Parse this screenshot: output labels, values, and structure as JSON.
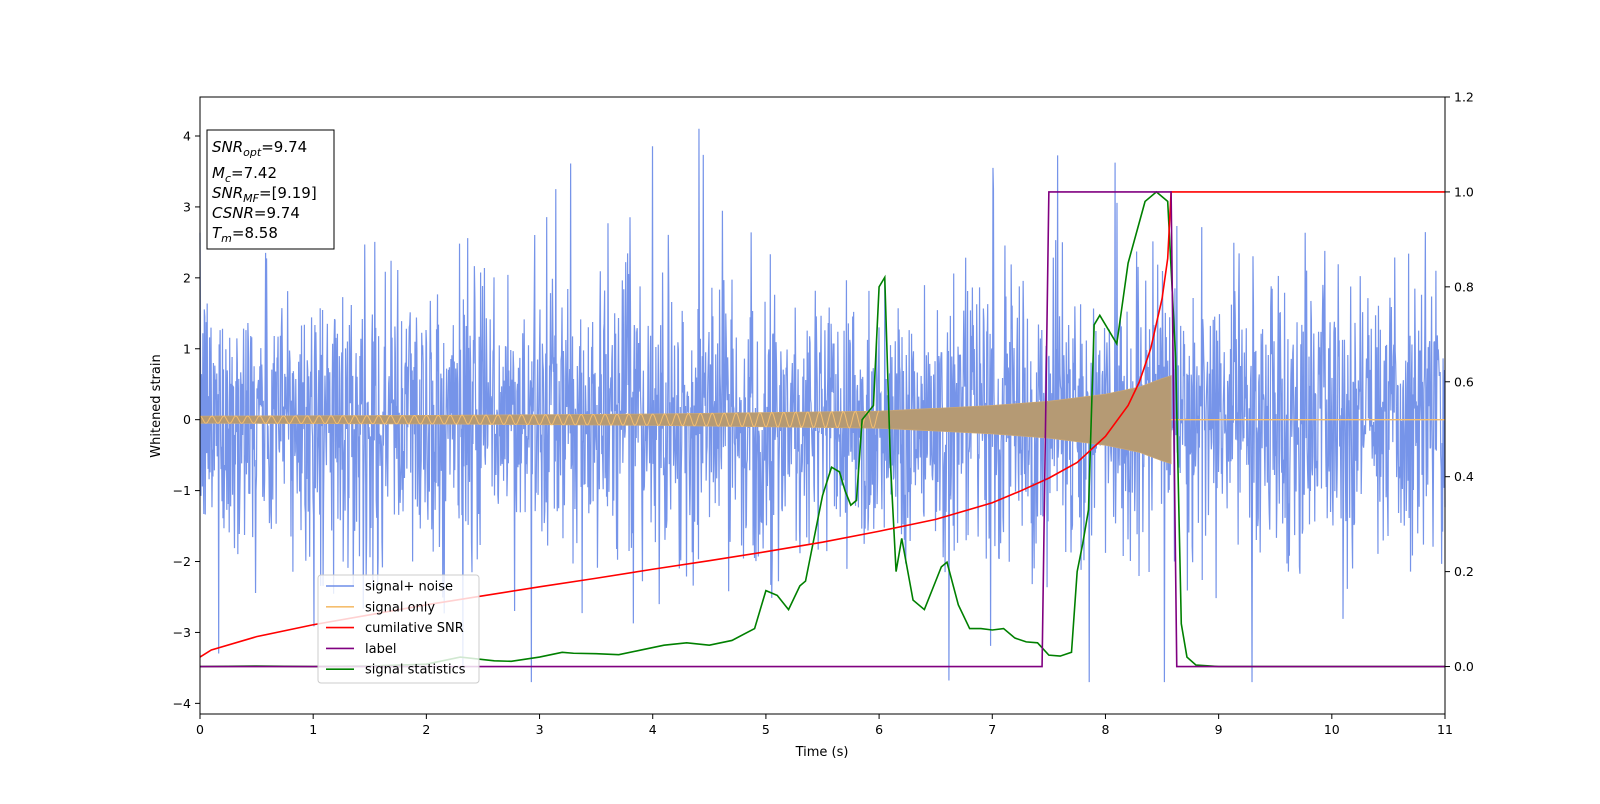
{
  "chart_data": {
    "type": "line",
    "xlabel": "Time (s)",
    "ylabel": "Whitened strain",
    "xlim": [
      0,
      11
    ],
    "ylim_left": [
      -4.15,
      4.55
    ],
    "ylim_right": [
      -0.1,
      1.2
    ],
    "x_ticks": [
      0,
      1,
      2,
      3,
      4,
      5,
      6,
      7,
      8,
      9,
      10,
      11
    ],
    "y_ticks_left": [
      -4,
      -3,
      -2,
      -1,
      0,
      1,
      2,
      3,
      4
    ],
    "y_ticks_right": [
      0.0,
      0.2,
      0.4,
      0.6,
      0.8,
      1.0,
      1.2
    ],
    "info_box": {
      "lines": [
        {
          "sym": "SNR",
          "sub": "opt",
          "val": "=9.74"
        },
        {
          "sym": "M",
          "sub": "c",
          "val": "=7.42"
        },
        {
          "sym": "SNR",
          "sub": "MF",
          "val": "=[9.19]"
        },
        {
          "sym": "CSNR",
          "sub": "",
          "val": "=9.74"
        },
        {
          "sym": "T",
          "sub": "m",
          "val": "=8.58"
        }
      ]
    },
    "legend": [
      {
        "label": "signal+ noise",
        "color": "#6f8ee8"
      },
      {
        "label": "signal only",
        "color": "#f5be6e"
      },
      {
        "label": "cumilative SNR",
        "color": "#ff0000"
      },
      {
        "label": "label",
        "color": "#800080"
      },
      {
        "label": "signal statistics",
        "color": "#008000"
      }
    ],
    "series": [
      {
        "name": "signal+ noise",
        "axis": "left",
        "color": "#6f8ee8",
        "description": "dense whitened noise, roughly +/-2 with spikes to ~4.2",
        "x_range": [
          0,
          11
        ],
        "amplitude_range": [
          -3.7,
          4.2
        ]
      },
      {
        "name": "signal only",
        "axis": "left",
        "color": "#f5be6e",
        "description": "chirp, envelope growing from ~0.05 at t=0 to ~0.6 at t=8.58, zero after",
        "envelope": [
          [
            0,
            0.05
          ],
          [
            2,
            0.06
          ],
          [
            4,
            0.08
          ],
          [
            6,
            0.12
          ],
          [
            7,
            0.2
          ],
          [
            7.5,
            0.26
          ],
          [
            8,
            0.36
          ],
          [
            8.3,
            0.46
          ],
          [
            8.5,
            0.58
          ],
          [
            8.58,
            0.62
          ]
        ]
      },
      {
        "name": "cumilative SNR",
        "axis": "right",
        "color": "#ff0000",
        "points": [
          [
            0,
            0.02
          ],
          [
            0.1,
            0.035
          ],
          [
            0.5,
            0.063
          ],
          [
            1,
            0.088
          ],
          [
            1.5,
            0.109
          ],
          [
            2,
            0.13
          ],
          [
            2.5,
            0.149
          ],
          [
            3,
            0.168
          ],
          [
            3.5,
            0.186
          ],
          [
            4,
            0.205
          ],
          [
            4.5,
            0.223
          ],
          [
            5,
            0.242
          ],
          [
            5.5,
            0.262
          ],
          [
            6,
            0.285
          ],
          [
            6.5,
            0.31
          ],
          [
            7,
            0.345
          ],
          [
            7.25,
            0.37
          ],
          [
            7.5,
            0.397
          ],
          [
            7.75,
            0.43
          ],
          [
            8,
            0.485
          ],
          [
            8.2,
            0.55
          ],
          [
            8.3,
            0.6
          ],
          [
            8.4,
            0.67
          ],
          [
            8.5,
            0.775
          ],
          [
            8.55,
            0.86
          ],
          [
            8.58,
            1.0
          ],
          [
            11,
            1.0
          ]
        ]
      },
      {
        "name": "label",
        "axis": "right",
        "color": "#800080",
        "points": [
          [
            0,
            0.0
          ],
          [
            7.44,
            0.0
          ],
          [
            7.5,
            1.0
          ],
          [
            8.58,
            1.0
          ],
          [
            8.63,
            0.0
          ],
          [
            11,
            0.0
          ]
        ]
      },
      {
        "name": "signal statistics",
        "axis": "right",
        "color": "#008000",
        "points": [
          [
            0,
            0.0
          ],
          [
            0.5,
            0.001
          ],
          [
            1,
            0.0
          ],
          [
            1.5,
            0.001
          ],
          [
            2,
            0.005
          ],
          [
            2.3,
            0.02
          ],
          [
            2.6,
            0.012
          ],
          [
            2.75,
            0.011
          ],
          [
            3,
            0.02
          ],
          [
            3.1,
            0.025
          ],
          [
            3.2,
            0.03
          ],
          [
            3.3,
            0.028
          ],
          [
            3.5,
            0.027
          ],
          [
            3.7,
            0.025
          ],
          [
            3.9,
            0.035
          ],
          [
            4.1,
            0.045
          ],
          [
            4.3,
            0.05
          ],
          [
            4.5,
            0.045
          ],
          [
            4.7,
            0.055
          ],
          [
            4.9,
            0.08
          ],
          [
            5.0,
            0.16
          ],
          [
            5.1,
            0.15
          ],
          [
            5.2,
            0.12
          ],
          [
            5.3,
            0.17
          ],
          [
            5.35,
            0.18
          ],
          [
            5.45,
            0.3
          ],
          [
            5.5,
            0.36
          ],
          [
            5.58,
            0.42
          ],
          [
            5.65,
            0.41
          ],
          [
            5.7,
            0.37
          ],
          [
            5.75,
            0.34
          ],
          [
            5.8,
            0.35
          ],
          [
            5.85,
            0.52
          ],
          [
            5.95,
            0.55
          ],
          [
            6.0,
            0.8
          ],
          [
            6.05,
            0.82
          ],
          [
            6.1,
            0.43
          ],
          [
            6.15,
            0.2
          ],
          [
            6.2,
            0.27
          ],
          [
            6.3,
            0.14
          ],
          [
            6.4,
            0.12
          ],
          [
            6.5,
            0.18
          ],
          [
            6.55,
            0.21
          ],
          [
            6.6,
            0.22
          ],
          [
            6.7,
            0.13
          ],
          [
            6.8,
            0.08
          ],
          [
            6.9,
            0.08
          ],
          [
            7.0,
            0.077
          ],
          [
            7.1,
            0.08
          ],
          [
            7.2,
            0.06
          ],
          [
            7.3,
            0.052
          ],
          [
            7.4,
            0.05
          ],
          [
            7.5,
            0.024
          ],
          [
            7.6,
            0.022
          ],
          [
            7.7,
            0.03
          ],
          [
            7.75,
            0.2
          ],
          [
            7.8,
            0.26
          ],
          [
            7.85,
            0.33
          ],
          [
            7.9,
            0.72
          ],
          [
            7.95,
            0.74
          ],
          [
            8.1,
            0.68
          ],
          [
            8.2,
            0.85
          ],
          [
            8.35,
            0.98
          ],
          [
            8.45,
            1.0
          ],
          [
            8.55,
            0.98
          ],
          [
            8.62,
            0.65
          ],
          [
            8.67,
            0.09
          ],
          [
            8.72,
            0.02
          ],
          [
            8.8,
            0.003
          ],
          [
            9,
            0.0
          ],
          [
            11,
            0.0
          ]
        ]
      }
    ]
  }
}
